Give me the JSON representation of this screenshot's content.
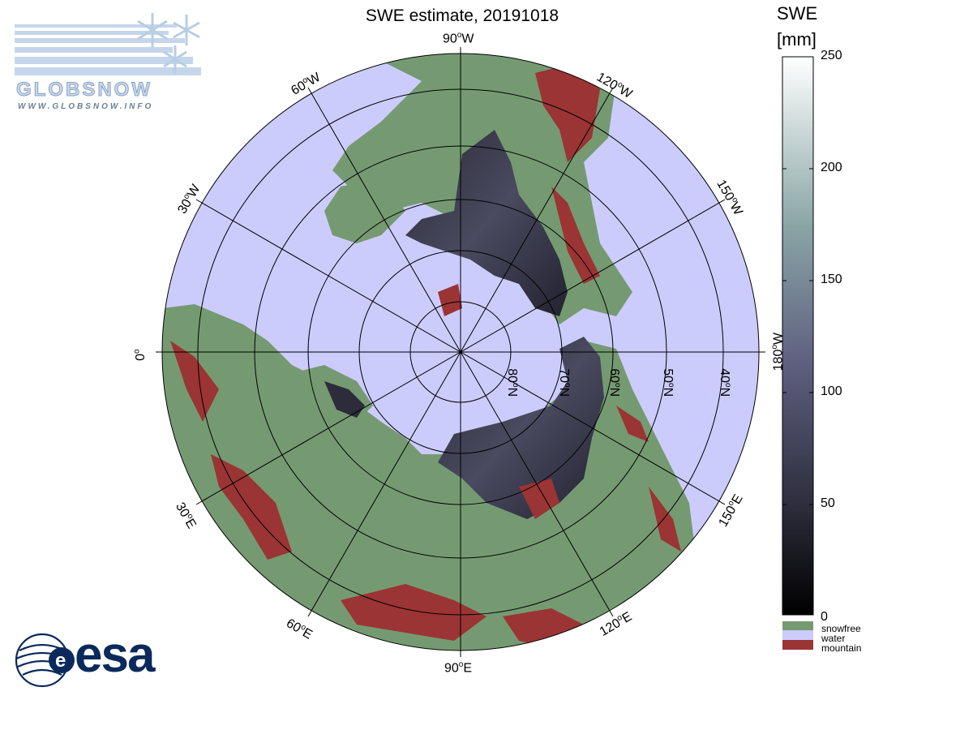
{
  "title": "SWE estimate, 20191018",
  "logos": {
    "globsnow_text": "GLOBSNOW",
    "globsnow_url": "WWW.GLOBSNOW.INFO",
    "esa_text": "esa"
  },
  "colors": {
    "snowfree": "#759a72",
    "water": "#ccccfc",
    "mountain": "#9b3434",
    "swe_low": "#000000",
    "swe_mid": "#5f5f80",
    "swe_high": "#ffffff"
  },
  "map": {
    "projection": "north polar stereographic",
    "longitude_labels": [
      {
        "text": "90",
        "sup": "o",
        "hem": "W"
      },
      {
        "text": "120",
        "sup": "o",
        "hem": "W"
      },
      {
        "text": "150",
        "sup": "o",
        "hem": "W"
      },
      {
        "text": "180",
        "sup": "o",
        "hem": "W"
      },
      {
        "text": "150",
        "sup": "o",
        "hem": "E"
      },
      {
        "text": "120",
        "sup": "o",
        "hem": "E"
      },
      {
        "text": "90",
        "sup": "o",
        "hem": "E"
      },
      {
        "text": "60",
        "sup": "o",
        "hem": "E"
      },
      {
        "text": "30",
        "sup": "o",
        "hem": "E"
      },
      {
        "text": "0",
        "sup": "o",
        "hem": ""
      },
      {
        "text": "30",
        "sup": "o",
        "hem": "W"
      },
      {
        "text": "60",
        "sup": "o",
        "hem": "W"
      }
    ],
    "latitude_labels": [
      {
        "text": "80",
        "sup": "o",
        "hem": "N"
      },
      {
        "text": "70",
        "sup": "o",
        "hem": "N"
      },
      {
        "text": "60",
        "sup": "o",
        "hem": "N"
      },
      {
        "text": "50",
        "sup": "o",
        "hem": "N"
      },
      {
        "text": "40",
        "sup": "o",
        "hem": "N"
      }
    ]
  },
  "colorbar": {
    "title_line1": "SWE",
    "title_line2": "[mm]",
    "range": [
      0,
      250
    ],
    "ticks": [
      "250",
      "200",
      "150",
      "100",
      "50",
      "0"
    ],
    "categories": [
      {
        "label": "snowfree",
        "color": "#759a72"
      },
      {
        "label": "water",
        "color": "#ccccfc"
      },
      {
        "label": "mountain",
        "color": "#9b3434"
      }
    ]
  }
}
